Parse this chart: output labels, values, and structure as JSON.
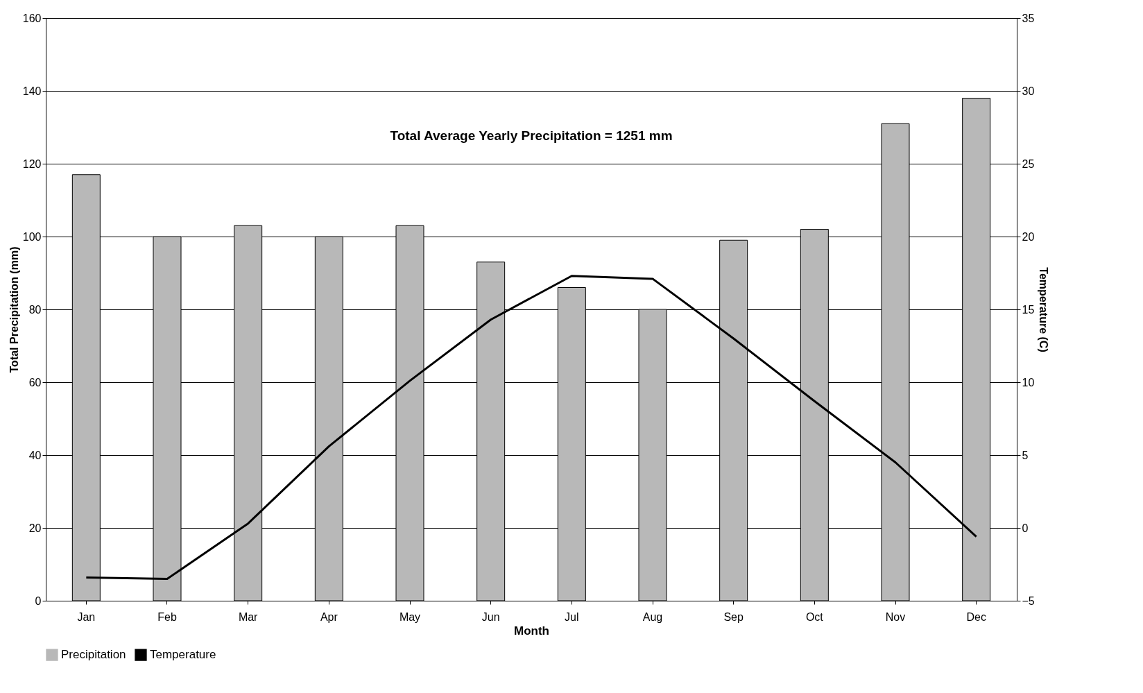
{
  "chart_data": {
    "type": "bar",
    "xlabel": "Month",
    "ylabel": "Total Precipitation (mm)",
    "y2label": "Temperature (C)",
    "annotations": [
      "Total Average Yearly Precipitation = 1251 mm"
    ],
    "categories": [
      "Jan",
      "Feb",
      "Mar",
      "Apr",
      "May",
      "Jun",
      "Jul",
      "Aug",
      "Sep",
      "Oct",
      "Nov",
      "Dec"
    ],
    "series": [
      {
        "name": "Precipitation",
        "color": "#b8b8b8",
        "values": [
          117,
          100,
          103,
          100,
          103,
          93,
          86,
          80,
          99,
          102,
          131,
          138
        ]
      },
      {
        "name": "Temperature",
        "type": "line",
        "axis": "y2",
        "color": "#000000",
        "values": [
          -3.4,
          -3.5,
          0.3,
          5.6,
          10.1,
          14.3,
          17.3,
          17.1,
          13.0,
          8.7,
          4.5,
          -0.6
        ]
      }
    ],
    "ylim": [
      0,
      160
    ],
    "yticks": [
      0,
      20,
      40,
      60,
      80,
      100,
      120,
      140,
      160
    ],
    "y2lim": [
      -5,
      35
    ],
    "y2ticks": [
      -5,
      0,
      5,
      10,
      15,
      20,
      25,
      30,
      35
    ],
    "grid": "y",
    "legend": "bottom",
    "marker": "none",
    "line_style": "solid"
  }
}
